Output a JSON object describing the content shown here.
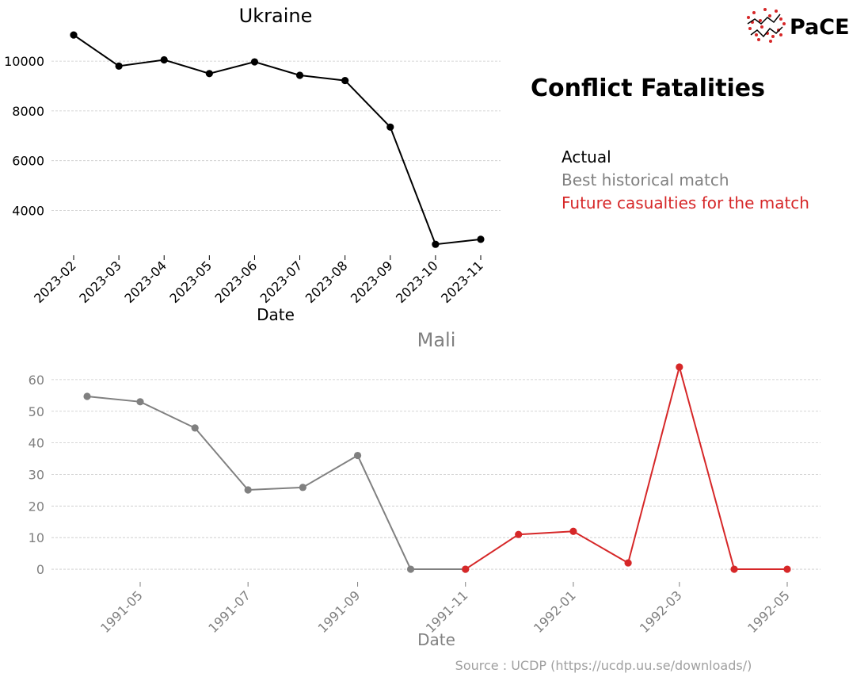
{
  "figure": {
    "title": "Conflict Fatalities",
    "legend": [
      {
        "label": "Actual",
        "color": "#000000"
      },
      {
        "label": "Best historical match",
        "color": "#808080"
      },
      {
        "label": "Future casualties for the match",
        "color": "#d62728"
      }
    ],
    "source": "Source : UCDP (https://ucdp.uu.se/downloads/)",
    "logo_text": "PaCE"
  },
  "chart_data": [
    {
      "type": "line",
      "title": "Ukraine",
      "xlabel": "Date",
      "ylabel": "",
      "ylim": [
        2200,
        11500
      ],
      "yticks": [
        4000,
        6000,
        8000,
        10000
      ],
      "grid": true,
      "color": "#000000",
      "series": [
        {
          "x": [
            "2023-02",
            "2023-03",
            "2023-04",
            "2023-05",
            "2023-06",
            "2023-07",
            "2023-08",
            "2023-09",
            "2023-10",
            "2023-11"
          ],
          "values": [
            11050,
            9800,
            10050,
            9500,
            9970,
            9430,
            9220,
            7350,
            2640,
            2840
          ]
        }
      ],
      "xticks": [
        "2023-02",
        "2023-03",
        "2023-04",
        "2023-05",
        "2023-06",
        "2023-07",
        "2023-08",
        "2023-09",
        "2023-10",
        "2023-11"
      ]
    },
    {
      "type": "line",
      "title": "Mali",
      "xlabel": "Date",
      "ylabel": "",
      "ylim": [
        -4,
        68
      ],
      "yticks": [
        0,
        10,
        20,
        30,
        40,
        50,
        60
      ],
      "grid": true,
      "xticks": [
        "1991-05",
        "1991-07",
        "1991-09",
        "1991-11",
        "1992-01",
        "1992-03",
        "1992-05"
      ],
      "series": [
        {
          "color": "#808080",
          "x": [
            "1991-04-01",
            "1991-05-01",
            "1991-06-01",
            "1991-07-01",
            "1991-08-01",
            "1991-09-01",
            "1991-10-01",
            "1991-11-01"
          ],
          "values": [
            54.7,
            53,
            44.7,
            25.1,
            25.9,
            36,
            0,
            0
          ]
        },
        {
          "color": "#d62728",
          "x": [
            "1991-11-01",
            "1991-12-01",
            "1992-01-01",
            "1992-02-01",
            "1992-03-01",
            "1992-04-01",
            "1992-05-01"
          ],
          "values": [
            0,
            11,
            12,
            2,
            64,
            0,
            0
          ]
        }
      ]
    }
  ]
}
